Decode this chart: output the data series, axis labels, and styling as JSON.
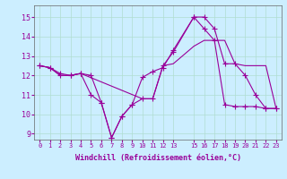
{
  "xlabel": "Windchill (Refroidissement éolien,°C)",
  "bg_color": "#cceeff",
  "grid_color": "#b0ddd0",
  "line_color": "#990099",
  "xlim": [
    -0.5,
    23.5
  ],
  "ylim": [
    8.7,
    15.6
  ],
  "xticks": [
    0,
    1,
    2,
    3,
    4,
    5,
    6,
    7,
    8,
    9,
    10,
    11,
    12,
    13,
    15,
    16,
    17,
    18,
    19,
    20,
    21,
    22,
    23
  ],
  "yticks": [
    9,
    10,
    11,
    12,
    13,
    14,
    15
  ],
  "line1_x": [
    0,
    1,
    2,
    3,
    4,
    5,
    6,
    7,
    8,
    9,
    10,
    11,
    12,
    13,
    15,
    16,
    17,
    18,
    19,
    20,
    21,
    22,
    23
  ],
  "line1_y": [
    12.5,
    12.4,
    12.1,
    12.0,
    12.1,
    11.0,
    10.6,
    8.8,
    9.9,
    10.5,
    11.9,
    12.2,
    12.4,
    13.3,
    15.0,
    15.0,
    14.4,
    12.6,
    12.6,
    12.0,
    11.0,
    10.3,
    10.3
  ],
  "line2_x": [
    0,
    1,
    2,
    3,
    4,
    5,
    6,
    7,
    8,
    9,
    10,
    11,
    12,
    13,
    15,
    16,
    17,
    18,
    19,
    20,
    21,
    22,
    23
  ],
  "line2_y": [
    12.5,
    12.4,
    12.0,
    12.0,
    12.1,
    12.0,
    10.6,
    8.8,
    9.9,
    10.5,
    10.8,
    10.8,
    12.5,
    13.2,
    15.0,
    14.4,
    13.8,
    10.5,
    10.4,
    10.4,
    10.4,
    10.3,
    10.3
  ],
  "line3_x": [
    0,
    1,
    2,
    3,
    4,
    10,
    11,
    12,
    13,
    15,
    16,
    17,
    18,
    19,
    20,
    21,
    22,
    23
  ],
  "line3_y": [
    12.5,
    12.4,
    12.0,
    12.0,
    12.1,
    10.8,
    10.8,
    12.5,
    12.6,
    13.5,
    13.8,
    13.8,
    13.8,
    12.6,
    12.5,
    12.5,
    12.5,
    10.3
  ]
}
